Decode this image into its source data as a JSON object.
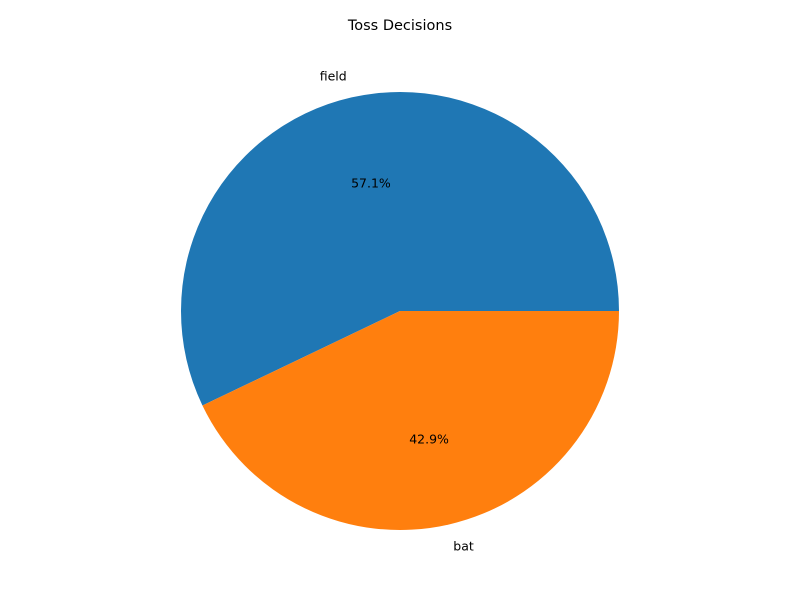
{
  "chart_data": {
    "type": "pie",
    "title": "Toss Decisions",
    "categories": [
      "field",
      "bat"
    ],
    "values": [
      57.1,
      42.9
    ],
    "percent_labels": [
      "57.1%",
      "42.9%"
    ],
    "colors": [
      "#1f77b4",
      "#ff7f0e"
    ],
    "start_angle_deg": 0,
    "direction": "counterclockwise",
    "legend": "none"
  }
}
